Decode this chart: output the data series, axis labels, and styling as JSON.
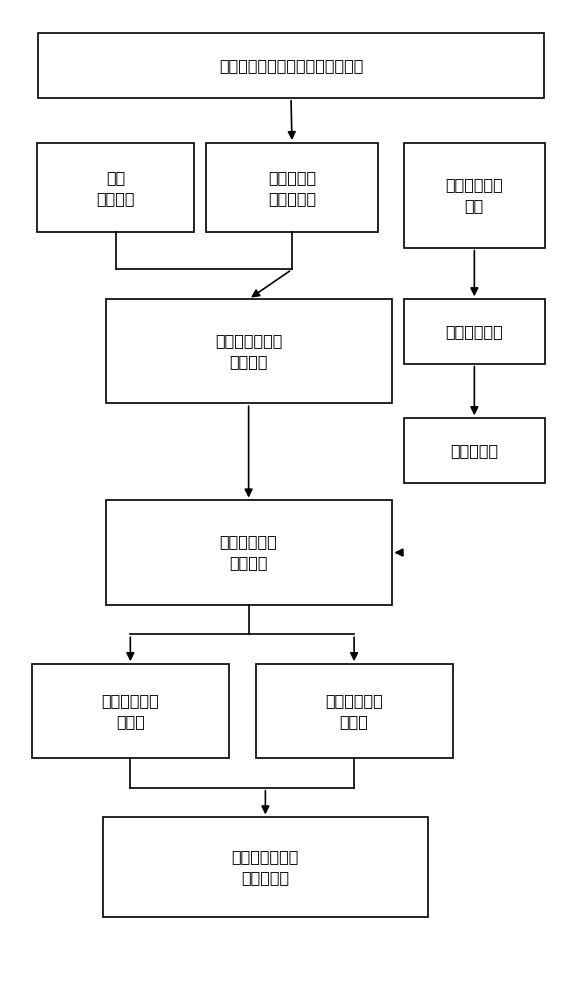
{
  "title": "确定主桨叶变距拉杆鸟撞技术状态",
  "box_bird_sim": "鸟撞\n仿真分析",
  "box_blade_spec": "主桨叶变距\n拉杆试验件",
  "box_emergency": "应急处置飞行\n状态",
  "box_bird_test": "主桨叶变距拉杆\n鸟撞试验",
  "box_flight_load": "飞行实测载荷",
  "box_test_spectrum": "试验载荷谱",
  "box_fatigue": "三十分钟疲劳\n寿命试验",
  "box_compress": "剩余压缩静强\n度试验",
  "box_tension": "剩余拉伸静强\n度试验",
  "box_final": "主桨叶变距拉杆\n抗鸟撞性能",
  "bg_color": "#ffffff",
  "edge_color": "#000000",
  "arrow_color": "#000000",
  "fontsize": 11.5,
  "lw": 1.2
}
